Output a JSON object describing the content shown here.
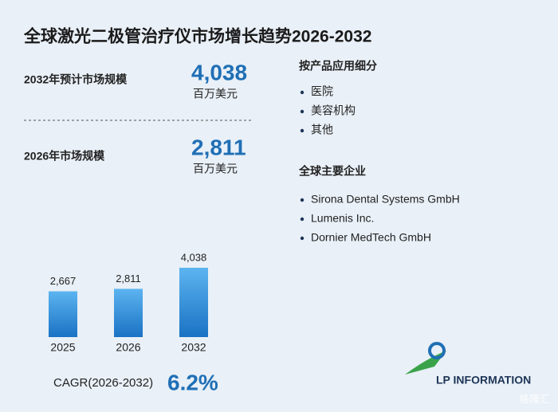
{
  "title": "全球激光二极管治疗仪市场增长趋势2026-2032",
  "stats": [
    {
      "label": "2032年预计市场规模",
      "value": "4,038",
      "unit": "百万美元"
    },
    {
      "label": "2026年市场规模",
      "value": "2,811",
      "unit": "百万美元"
    }
  ],
  "segments": {
    "heading": "按产品应用细分",
    "items": [
      "医院",
      "美容机构",
      "其他"
    ]
  },
  "companies": {
    "heading": "全球主要企业",
    "items": [
      "Sirona Dental Systems GmbH",
      "Lumenis Inc.",
      "Dornier MedTech GmbH"
    ]
  },
  "chart_data": {
    "type": "bar",
    "categories": [
      "2025",
      "2026",
      "2032"
    ],
    "values": [
      2667,
      2811,
      4038
    ],
    "value_labels": [
      "2,667",
      "2,811",
      "4,038"
    ],
    "color": "#1f7fd0"
  },
  "cagr": {
    "label": "CAGR(2026-2032)",
    "value": "6.2%"
  },
  "logo": "LP INFORMATION",
  "watermark": "格隆汇"
}
